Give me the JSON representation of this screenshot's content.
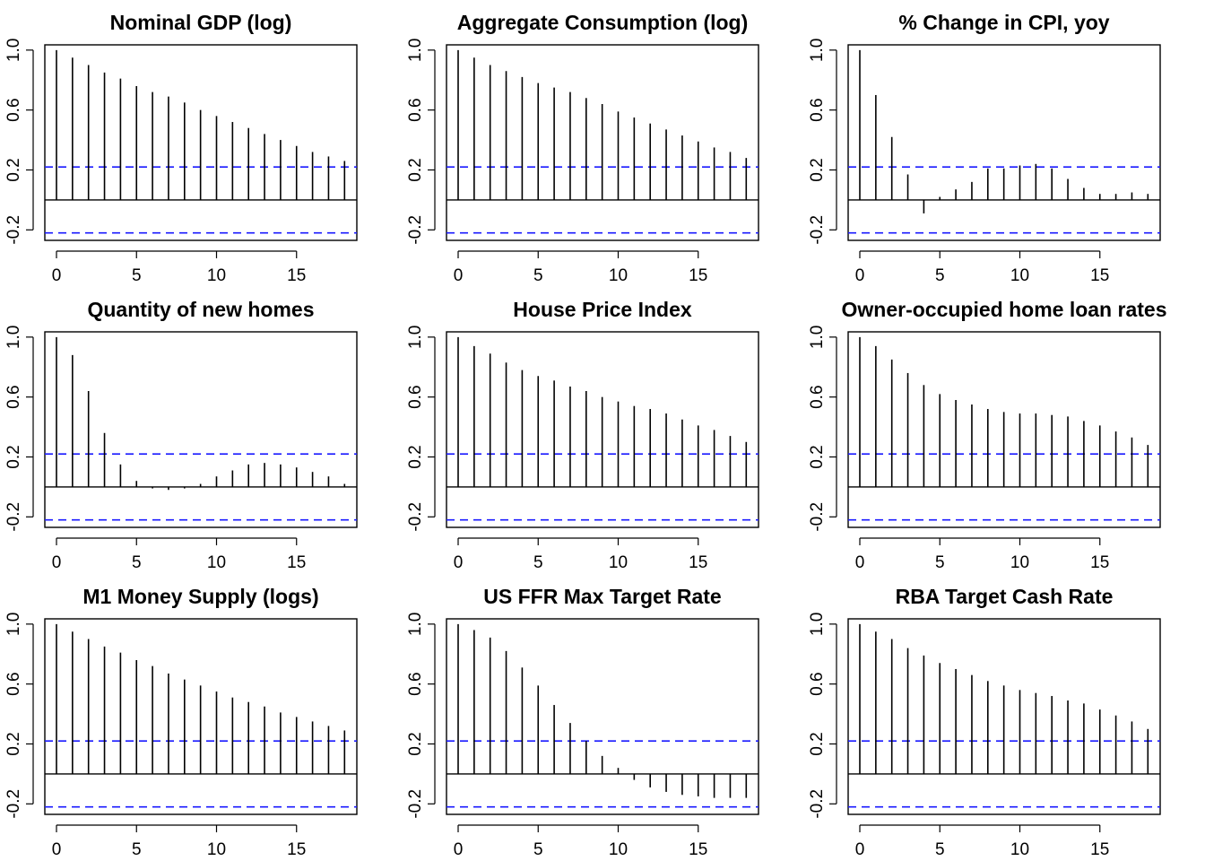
{
  "chart_data": [
    {
      "type": "bar",
      "title": "Nominal GDP (log)",
      "x": [
        0,
        1,
        2,
        3,
        4,
        5,
        6,
        7,
        8,
        9,
        10,
        11,
        12,
        13,
        14,
        15,
        16,
        17,
        18
      ],
      "values": [
        1.0,
        0.95,
        0.9,
        0.85,
        0.81,
        0.76,
        0.72,
        0.69,
        0.65,
        0.6,
        0.56,
        0.52,
        0.48,
        0.44,
        0.4,
        0.36,
        0.32,
        0.29,
        0.26
      ],
      "ci": 0.22,
      "ylim": [
        -0.27,
        1.0
      ],
      "yticks": [
        -0.2,
        0.2,
        0.6,
        1.0
      ],
      "xticks": [
        0,
        5,
        10,
        15
      ]
    },
    {
      "type": "bar",
      "title": "Aggregate Consumption (log)",
      "x": [
        0,
        1,
        2,
        3,
        4,
        5,
        6,
        7,
        8,
        9,
        10,
        11,
        12,
        13,
        14,
        15,
        16,
        17,
        18
      ],
      "values": [
        1.0,
        0.95,
        0.9,
        0.86,
        0.82,
        0.78,
        0.75,
        0.72,
        0.68,
        0.64,
        0.59,
        0.55,
        0.51,
        0.47,
        0.43,
        0.39,
        0.35,
        0.32,
        0.28
      ],
      "ci": 0.22,
      "ylim": [
        -0.27,
        1.0
      ],
      "yticks": [
        -0.2,
        0.2,
        0.6,
        1.0
      ],
      "xticks": [
        0,
        5,
        10,
        15
      ]
    },
    {
      "type": "bar",
      "title": "% Change in CPI, yoy",
      "x": [
        0,
        1,
        2,
        3,
        4,
        5,
        6,
        7,
        8,
        9,
        10,
        11,
        12,
        13,
        14,
        15,
        16,
        17,
        18
      ],
      "values": [
        1.0,
        0.7,
        0.42,
        0.17,
        -0.09,
        0.02,
        0.07,
        0.12,
        0.21,
        0.21,
        0.23,
        0.24,
        0.21,
        0.14,
        0.08,
        0.04,
        0.04,
        0.05,
        0.04
      ],
      "ci": 0.22,
      "ylim": [
        -0.27,
        1.0
      ],
      "yticks": [
        -0.2,
        0.2,
        0.6,
        1.0
      ],
      "xticks": [
        0,
        5,
        10,
        15
      ]
    },
    {
      "type": "bar",
      "title": "Quantity of new homes",
      "x": [
        0,
        1,
        2,
        3,
        4,
        5,
        6,
        7,
        8,
        9,
        10,
        11,
        12,
        13,
        14,
        15,
        16,
        17,
        18
      ],
      "values": [
        1.0,
        0.88,
        0.64,
        0.36,
        0.15,
        0.04,
        -0.01,
        -0.02,
        -0.01,
        0.02,
        0.07,
        0.11,
        0.15,
        0.16,
        0.15,
        0.13,
        0.1,
        0.07,
        0.02
      ],
      "ci": 0.22,
      "ylim": [
        -0.27,
        1.0
      ],
      "yticks": [
        -0.2,
        0.2,
        0.6,
        1.0
      ],
      "xticks": [
        0,
        5,
        10,
        15
      ]
    },
    {
      "type": "bar",
      "title": "House Price Index",
      "x": [
        0,
        1,
        2,
        3,
        4,
        5,
        6,
        7,
        8,
        9,
        10,
        11,
        12,
        13,
        14,
        15,
        16,
        17,
        18
      ],
      "values": [
        1.0,
        0.94,
        0.89,
        0.83,
        0.78,
        0.74,
        0.71,
        0.67,
        0.64,
        0.6,
        0.57,
        0.54,
        0.52,
        0.49,
        0.45,
        0.41,
        0.38,
        0.34,
        0.3
      ],
      "ci": 0.22,
      "ylim": [
        -0.27,
        1.0
      ],
      "yticks": [
        -0.2,
        0.2,
        0.6,
        1.0
      ],
      "xticks": [
        0,
        5,
        10,
        15
      ]
    },
    {
      "type": "bar",
      "title": "Owner-occupied home loan rates",
      "x": [
        0,
        1,
        2,
        3,
        4,
        5,
        6,
        7,
        8,
        9,
        10,
        11,
        12,
        13,
        14,
        15,
        16,
        17,
        18
      ],
      "values": [
        1.0,
        0.94,
        0.85,
        0.76,
        0.68,
        0.62,
        0.58,
        0.55,
        0.52,
        0.5,
        0.49,
        0.49,
        0.48,
        0.47,
        0.44,
        0.41,
        0.37,
        0.33,
        0.28
      ],
      "ci": 0.22,
      "ylim": [
        -0.27,
        1.0
      ],
      "yticks": [
        -0.2,
        0.2,
        0.6,
        1.0
      ],
      "xticks": [
        0,
        5,
        10,
        15
      ]
    },
    {
      "type": "bar",
      "title": "M1 Money Supply (logs)",
      "x": [
        0,
        1,
        2,
        3,
        4,
        5,
        6,
        7,
        8,
        9,
        10,
        11,
        12,
        13,
        14,
        15,
        16,
        17,
        18
      ],
      "values": [
        1.0,
        0.95,
        0.9,
        0.85,
        0.81,
        0.76,
        0.72,
        0.67,
        0.63,
        0.59,
        0.55,
        0.51,
        0.48,
        0.45,
        0.41,
        0.38,
        0.35,
        0.32,
        0.29
      ],
      "ci": 0.22,
      "ylim": [
        -0.27,
        1.0
      ],
      "yticks": [
        -0.2,
        0.2,
        0.6,
        1.0
      ],
      "xticks": [
        0,
        5,
        10,
        15
      ]
    },
    {
      "type": "bar",
      "title": "US FFR Max Target Rate",
      "x": [
        0,
        1,
        2,
        3,
        4,
        5,
        6,
        7,
        8,
        9,
        10,
        11,
        12,
        13,
        14,
        15,
        16,
        17,
        18
      ],
      "values": [
        1.0,
        0.96,
        0.91,
        0.82,
        0.71,
        0.59,
        0.46,
        0.34,
        0.22,
        0.12,
        0.04,
        -0.04,
        -0.09,
        -0.12,
        -0.14,
        -0.15,
        -0.16,
        -0.16,
        -0.16
      ],
      "ci": 0.22,
      "ylim": [
        -0.27,
        1.0
      ],
      "yticks": [
        -0.2,
        0.2,
        0.6,
        1.0
      ],
      "xticks": [
        0,
        5,
        10,
        15
      ]
    },
    {
      "type": "bar",
      "title": "RBA Target Cash Rate",
      "x": [
        0,
        1,
        2,
        3,
        4,
        5,
        6,
        7,
        8,
        9,
        10,
        11,
        12,
        13,
        14,
        15,
        16,
        17,
        18
      ],
      "values": [
        1.0,
        0.95,
        0.9,
        0.84,
        0.79,
        0.74,
        0.7,
        0.66,
        0.62,
        0.59,
        0.56,
        0.54,
        0.52,
        0.49,
        0.47,
        0.43,
        0.39,
        0.35,
        0.3
      ],
      "ci": 0.22,
      "ylim": [
        -0.27,
        1.0
      ],
      "yticks": [
        -0.2,
        0.2,
        0.6,
        1.0
      ],
      "xticks": [
        0,
        5,
        10,
        15
      ]
    }
  ],
  "colors": {
    "spike": "#000000",
    "confidence_band": "#1a1aff"
  }
}
